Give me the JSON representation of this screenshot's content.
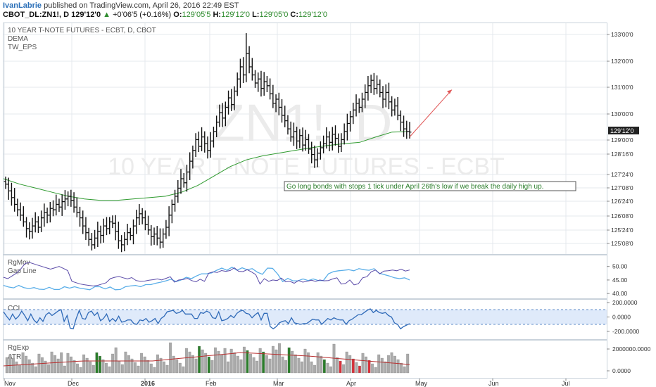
{
  "header": {
    "author": "IvanLabrie",
    "published": "published on TradingView.com, April 26, 2016 22:49 EST",
    "symbol": "CBOT_DL:ZN1!, D",
    "last": "129'12'0",
    "change": "+0'06'5 (+0.16%)",
    "o_label": "O:",
    "o_value": "129'05'5",
    "h_label": "H:",
    "h_value": "129'12'0",
    "l_label": "L:",
    "l_value": "129'05'0",
    "c_label": "C:",
    "c_value": "129'12'0"
  },
  "main": {
    "title": "10 YEAR T-NOTE FUTURES - ECBT, D, CBOT",
    "study1": "DEMA",
    "study2": "TW_EPS",
    "watermark_symbol": "ZN1!, D",
    "watermark_name": "10 YEAR T-NOTE FUTURES - ECBT",
    "annotation": "Go long bonds with stops 1 tick under April 26th's low if we break the daily high up.",
    "price_badge": "129'12'0"
  },
  "chart_data": [
    {
      "type": "ohlc",
      "title": "10 YEAR T-NOTE FUTURES - ECBT, D, CBOT",
      "y_ticks": [
        "133'00'0",
        "132'00'0",
        "131'00'0",
        "130'00'0",
        "129'00'0",
        "128'16'0",
        "127'24'0",
        "127'08'0",
        "126'24'0",
        "126'08'0",
        "125'24'0",
        "125'08'0"
      ],
      "ylim": [
        125.0,
        133.3
      ],
      "closes": [
        127.45,
        127.2,
        126.95,
        126.7,
        126.5,
        126.3,
        126.05,
        125.8,
        125.7,
        125.9,
        126.05,
        125.85,
        126.2,
        126.4,
        126.3,
        126.55,
        126.5,
        126.7,
        126.6,
        126.8,
        126.9,
        127.0,
        126.85,
        126.6,
        126.4,
        126.2,
        125.9,
        125.65,
        125.4,
        125.2,
        125.45,
        125.7,
        125.55,
        125.9,
        125.8,
        126.05,
        126.0,
        125.7,
        125.35,
        125.2,
        125.4,
        125.65,
        125.55,
        125.9,
        126.2,
        126.35,
        126.2,
        125.95,
        125.75,
        125.5,
        125.6,
        125.45,
        125.3,
        125.6,
        125.85,
        126.3,
        126.7,
        127.0,
        127.3,
        127.65,
        127.5,
        127.9,
        128.3,
        128.7,
        129.1,
        128.85,
        129.2,
        128.95,
        128.7,
        129.05,
        129.4,
        129.75,
        130.1,
        129.9,
        130.3,
        130.65,
        130.4,
        130.9,
        131.35,
        131.8,
        131.5,
        132.3,
        131.8,
        131.5,
        131.2,
        131.35,
        131.0,
        131.25,
        131.1,
        130.8,
        130.45,
        130.6,
        130.3,
        130.0,
        129.8,
        129.5,
        129.2,
        129.4,
        129.05,
        129.25,
        128.9,
        129.1,
        128.75,
        128.55,
        128.35,
        128.6,
        128.8,
        128.95,
        129.2,
        129.0,
        129.3,
        129.15,
        128.85,
        129.1,
        129.4,
        129.7,
        129.95,
        130.2,
        130.45,
        130.3,
        130.6,
        130.85,
        131.1,
        131.3,
        131.0,
        131.15,
        130.85,
        130.6,
        130.85,
        130.5,
        130.2,
        130.35,
        130.0,
        129.75,
        129.5,
        129.4,
        129.38
      ],
      "dema": [
        127.65,
        127.45,
        127.3,
        127.15,
        127.0,
        126.9,
        126.85,
        126.85,
        126.9,
        126.95,
        127.0,
        127.15,
        127.4,
        127.75,
        128.1,
        128.35,
        128.5,
        128.6,
        128.7,
        128.8,
        128.88,
        128.95,
        129.0,
        129.2,
        129.38,
        129.4
      ],
      "projection": {
        "from": "129'05'0",
        "to": "131'05'0"
      }
    },
    {
      "type": "line",
      "series": [
        {
          "name": "RgMov"
        },
        {
          "name": "Gap Line"
        }
      ],
      "y_ticks": [
        "50.00",
        "45.00",
        "40.00"
      ],
      "ylim": [
        39.0,
        52.0
      ],
      "series_values": {
        "RgMov": [
          46,
          45.5,
          46.5,
          47.5,
          49,
          51,
          51.5,
          51,
          50.5,
          50,
          49.5,
          49,
          49.5,
          50,
          49.3,
          48.5,
          44.5,
          44,
          43.5,
          43.2,
          43,
          42.8,
          43,
          43.5,
          44,
          45.5,
          46,
          46.3,
          45.8,
          45.4,
          45.9,
          44.8,
          44.5,
          44.6,
          44.9,
          45.1,
          45.4,
          45,
          45.6,
          46.2,
          44.2,
          45,
          45.2,
          45.6,
          44.8,
          44.3,
          45.3,
          44.5,
          47.5,
          48,
          47.8,
          48.5,
          48.2,
          48.5,
          49.5,
          48.2,
          48.1,
          48.8,
          48,
          47,
          43.5,
          45.5,
          44.5,
          45,
          44.8,
          45.7,
          44.3,
          44.5,
          43.8,
          44.8,
          44.2,
          44.5,
          44.9,
          44.5,
          45,
          44.7,
          44.8,
          45.4,
          45.8,
          43.5,
          43.7,
          45,
          43.2,
          43.6,
          45.8,
          46.2,
          48,
          48.7,
          47.3,
          48.3,
          48.4,
          48.7,
          48.4,
          49,
          48.3,
          48.7
        ],
        "Gap Line": [
          43,
          42.4,
          42.1,
          43,
          42.2,
          41.8,
          42.2,
          41.6,
          41.5,
          42.3,
          41.5,
          41.5,
          42.5,
          42,
          42.5,
          42,
          41.7,
          41.4,
          42.5,
          42.5,
          41.7,
          42.4,
          41.4,
          41.5,
          42.5,
          42.8,
          43,
          42.5,
          43.3,
          43.3,
          43.8,
          44.2,
          44.7,
          45.3,
          44.4,
          45,
          46,
          45.5,
          46.5,
          47.3,
          47.3,
          47.6,
          48.6,
          49.4,
          48.6,
          49.7,
          48.6,
          49.5,
          48.8,
          49.2,
          47.9,
          47.1,
          49.4,
          49.3,
          47.2,
          44.4,
          45.6,
          44.7,
          44.7,
          45.4,
          44.8,
          45.4,
          44.8,
          44.8,
          47.3,
          48.1,
          48.4,
          48.6,
          48.8,
          48.4,
          49.2,
          48.8,
          48.6,
          49.2,
          47.5,
          47,
          46.5,
          45.8,
          45.5,
          45.8,
          45
        ]
      }
    },
    {
      "type": "line",
      "series": [
        {
          "name": "CCI"
        }
      ],
      "y_ticks": [
        "200.0000",
        "0.0000",
        "-200.0000"
      ],
      "ylim": [
        -260,
        260
      ],
      "band": [
        -100,
        100
      ]
    },
    {
      "type": "bar",
      "series": [
        {
          "name": "RgExp"
        },
        {
          "name": "ATR"
        }
      ],
      "y_ticks": [
        "2000000.0000",
        "0.0000"
      ],
      "ylim": [
        0,
        2600000
      ]
    }
  ],
  "x_axis": {
    "ticks": [
      "Nov",
      "Dec",
      "2016",
      "Feb",
      "Mar",
      "Apr",
      "May",
      "Jun",
      "Jul"
    ]
  },
  "colors": {
    "up": "#2a7d2a",
    "down": "#d8303a",
    "bar": "#aaaaaa",
    "light_blue": "#5aaee8",
    "purple": "#5a4aa8",
    "cci": "#2f6ab8",
    "dema": "#2e9a2e",
    "atr_red": "#b83030",
    "grid": "#e4e9ee"
  }
}
